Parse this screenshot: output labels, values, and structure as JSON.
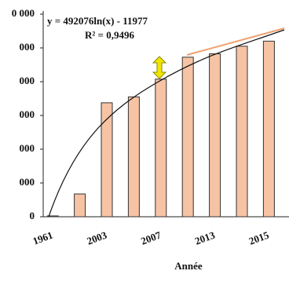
{
  "chart_data": {
    "type": "bar",
    "equation": "y = 492076ln(x) - 11977",
    "r_squared": "R² = 0,9496",
    "x_label": "Année",
    "categories": [
      "1961",
      null,
      "2003",
      null,
      "2007",
      null,
      "2013",
      null,
      "2015"
    ],
    "values": [
      5000,
      135000,
      675000,
      710000,
      815000,
      945000,
      965000,
      1010000,
      1040000
    ],
    "color": "#f6c3a5",
    "ylim": [
      0,
      1200000
    ],
    "yticks": [
      {
        "value": 0,
        "label": "0"
      },
      {
        "value": 200000,
        "label": "000"
      },
      {
        "value": 400000,
        "label": "000"
      },
      {
        "value": 600000,
        "label": "000"
      },
      {
        "value": 800000,
        "label": "000"
      },
      {
        "value": 1000000,
        "label": "000"
      },
      {
        "value": 1200000,
        "label": "0 000"
      }
    ]
  }
}
